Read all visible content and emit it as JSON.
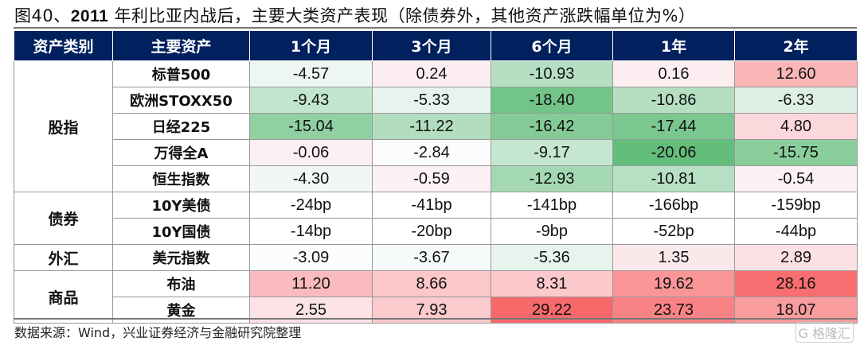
{
  "title": {
    "prefix": "图40、",
    "bold": "2011",
    "rest": " 年利比亚内战后，主要大类资产表现（除债券外，其他资产涨跌幅单位为%）"
  },
  "headers": [
    "资产类别",
    "主要资产",
    "1个月",
    "3个月",
    "6个月",
    "1年",
    "2年"
  ],
  "groups": [
    {
      "category": "股指",
      "rows": [
        {
          "asset": "标普500",
          "values": [
            "-4.57",
            "0.24",
            "-10.93",
            "0.16",
            "12.60"
          ]
        },
        {
          "asset": "欧洲STOXX50",
          "values": [
            "-9.43",
            "-5.33",
            "-18.40",
            "-10.86",
            "-6.33"
          ]
        },
        {
          "asset": "日经225",
          "values": [
            "-15.04",
            "-11.22",
            "-16.42",
            "-17.44",
            "4.80"
          ]
        },
        {
          "asset": "万得全A",
          "values": [
            "-0.06",
            "-2.84",
            "-9.17",
            "-20.06",
            "-15.75"
          ]
        },
        {
          "asset": "恒生指数",
          "values": [
            "-4.30",
            "-0.59",
            "-12.93",
            "-10.81",
            "-0.54"
          ]
        }
      ]
    },
    {
      "category": "债券",
      "rows": [
        {
          "asset": "10Y美债",
          "values": [
            "-24bp",
            "-41bp",
            "-141bp",
            "-166bp",
            "-159bp"
          ]
        },
        {
          "asset": "10Y国债",
          "values": [
            "-14bp",
            "-20bp",
            "-9bp",
            "-52bp",
            "-44bp"
          ]
        }
      ]
    },
    {
      "category": "外汇",
      "rows": [
        {
          "asset": "美元指数",
          "values": [
            "-3.09",
            "-3.67",
            "-5.36",
            "1.35",
            "2.89"
          ]
        }
      ]
    },
    {
      "category": "商品",
      "rows": [
        {
          "asset": "布油",
          "values": [
            "11.20",
            "8.66",
            "8.31",
            "19.62",
            "28.16"
          ]
        },
        {
          "asset": "黄金",
          "values": [
            "2.55",
            "7.93",
            "29.22",
            "23.73",
            "18.07"
          ]
        }
      ]
    }
  ],
  "colors": {
    "header_bg": "#00205e",
    "positive": "#f8696b",
    "negative": "#63be7b",
    "neutral": "#fcfcff"
  },
  "footer": "数据来源：Wind，兴业证券经济与金融研究院整理",
  "watermark": "格隆汇"
}
